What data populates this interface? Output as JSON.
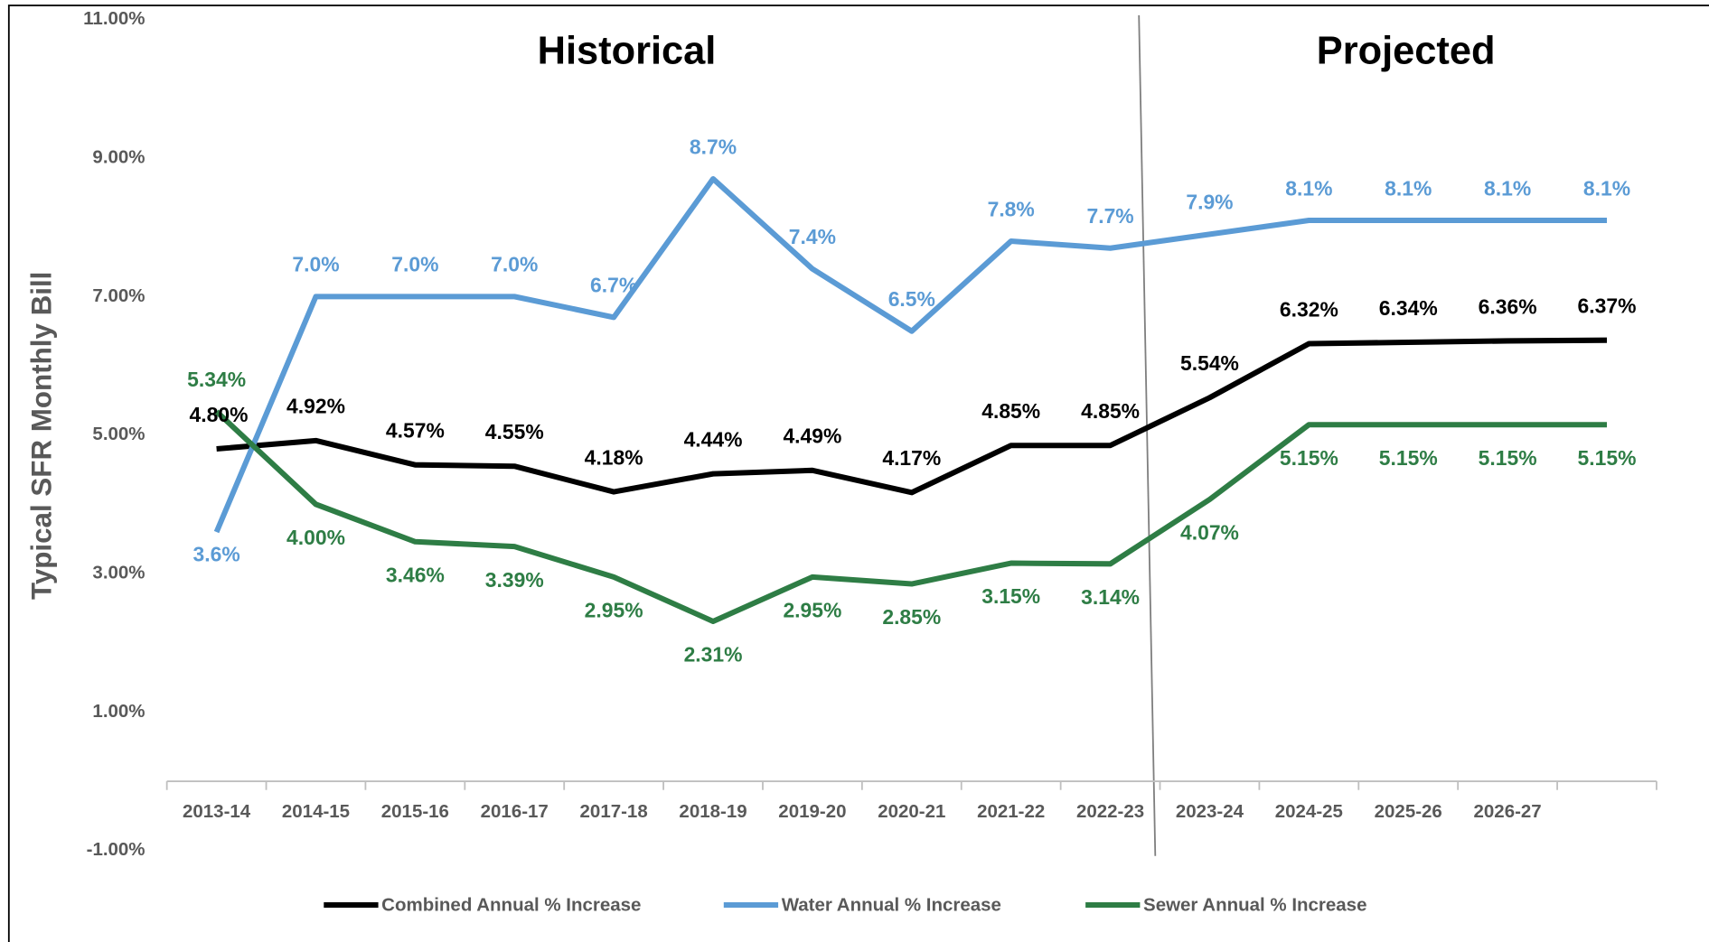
{
  "chart_data": {
    "type": "line",
    "y_label": "Typical SFR Monthly Bill",
    "annotations": [
      "Historical",
      "Projected"
    ],
    "categories": [
      "2013-14",
      "2014-15",
      "2015-16",
      "2016-17",
      "2017-18",
      "2018-19",
      "2019-20",
      "2020-21",
      "2021-22",
      "2022-23",
      "2023-24",
      "2024-25",
      "2025-26",
      "2026-27",
      null
    ],
    "ylim": [
      -1,
      11
    ],
    "yticks": [
      {
        "value": -1,
        "label": "-1.00%"
      },
      {
        "value": 1,
        "label": "1.00%"
      },
      {
        "value": 3,
        "label": "3.00%"
      },
      {
        "value": 5,
        "label": "5.00%"
      },
      {
        "value": 7,
        "label": "7.00%"
      },
      {
        "value": 9,
        "label": "9.00%"
      },
      {
        "value": 11,
        "label": "11.00%"
      }
    ],
    "grid": false,
    "legend": "bottom",
    "series": [
      {
        "name": "Combined Annual % Increase",
        "color": "#000000",
        "values": [
          4.8,
          4.92,
          4.57,
          4.55,
          4.18,
          4.44,
          4.49,
          4.17,
          4.85,
          4.85,
          5.54,
          6.32,
          6.34,
          6.36,
          6.37
        ],
        "value_labels": [
          "4.80%",
          "4.92%",
          "4.57%",
          "4.55%",
          "4.18%",
          "4.44%",
          "4.49%",
          "4.17%",
          "4.85%",
          "4.85%",
          "5.54%",
          "6.32%",
          "6.34%",
          "6.36%",
          "6.37%"
        ]
      },
      {
        "name": "Water Annual % Increase",
        "color": "#5b9bd5",
        "values": [
          3.6,
          7.0,
          7.0,
          7.0,
          6.7,
          8.7,
          7.4,
          6.5,
          7.8,
          7.7,
          7.9,
          8.1,
          8.1,
          8.1,
          8.1
        ],
        "value_labels": [
          "3.6%",
          "7.0%",
          "7.0%",
          "7.0%",
          "6.7%",
          "8.7%",
          "7.4%",
          "6.5%",
          "7.8%",
          "7.7%",
          "7.9%",
          "8.1%",
          "8.1%",
          "8.1%",
          "8.1%"
        ]
      },
      {
        "name": "Sewer Annual % Increase",
        "color": "#2e7d45",
        "values": [
          5.34,
          4.0,
          3.46,
          3.39,
          2.95,
          2.31,
          2.95,
          2.85,
          3.15,
          3.14,
          4.07,
          5.15,
          5.15,
          5.15,
          5.15
        ],
        "value_labels": [
          "5.34%",
          "4.00%",
          "3.46%",
          "3.39%",
          "2.95%",
          "2.31%",
          "2.95%",
          "2.85%",
          "3.15%",
          "3.14%",
          "4.07%",
          "5.15%",
          "5.15%",
          "5.15%",
          "5.15%"
        ]
      }
    ]
  }
}
